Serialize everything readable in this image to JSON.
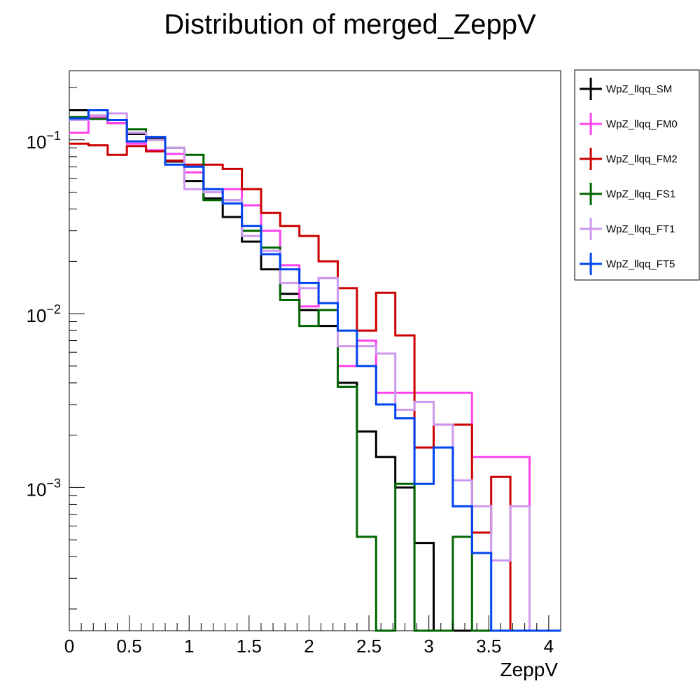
{
  "chart_data": {
    "type": "histogram",
    "title": "Distribution of merged_ZeppV",
    "xlabel": "ZeppV",
    "ylabel": "",
    "xlim": [
      0,
      4.1
    ],
    "ylim": [
      0.00015,
      0.25
    ],
    "yscale": "log",
    "bin_edges": [
      0,
      0.16,
      0.32,
      0.48,
      0.64,
      0.8,
      0.96,
      1.12,
      1.28,
      1.44,
      1.6,
      1.76,
      1.92,
      2.08,
      2.24,
      2.4,
      2.56,
      2.72,
      2.88,
      3.04,
      3.2,
      3.36,
      3.52,
      3.68,
      3.84,
      4.0
    ],
    "x_ticks": [
      "0",
      "0.5",
      "1",
      "1.5",
      "2",
      "2.5",
      "3",
      "3.5",
      "4"
    ],
    "x_tick_values": [
      0,
      0.5,
      1,
      1.5,
      2,
      2.5,
      3,
      3.5,
      4
    ],
    "y_tick_base": "10",
    "y_tick_exponents": [
      "−3",
      "−2",
      "−1"
    ],
    "y_tick_values": [
      0.001,
      0.01,
      0.1
    ],
    "legend_position": "top-right",
    "series": [
      {
        "name": "WpZ_llqq_SM",
        "color": "#000000",
        "values": [
          0.148,
          0.138,
          0.125,
          0.108,
          0.102,
          0.075,
          0.058,
          0.046,
          0.036,
          0.026,
          0.018,
          0.013,
          0.0105,
          0.0085,
          0.004,
          0.0021,
          0.0015,
          0.001,
          0.00048,
          0,
          0,
          0,
          0,
          0,
          0
        ]
      },
      {
        "name": "WpZ_llqq_FM0",
        "color": "#ff44ee",
        "values": [
          0.11,
          0.135,
          0.125,
          0.095,
          0.087,
          0.083,
          0.065,
          0.052,
          0.052,
          0.042,
          0.03,
          0.019,
          0.011,
          0.016,
          0.005,
          0.007,
          0.0035,
          0.0035,
          0.0035,
          0.0035,
          0.0035,
          0.0015,
          0.0015,
          0.0015,
          0
        ]
      },
      {
        "name": "WpZ_llqq_FM2",
        "color": "#cc0000",
        "values": [
          0.095,
          0.093,
          0.082,
          0.092,
          0.086,
          0.076,
          0.072,
          0.072,
          0.068,
          0.052,
          0.038,
          0.032,
          0.028,
          0.02,
          0.014,
          0.008,
          0.0132,
          0.0075,
          0.0017,
          0.0023,
          0.0023,
          0.00055,
          0.00115,
          0,
          0
        ]
      },
      {
        "name": "WpZ_llqq_FS1",
        "color": "#006600",
        "values": [
          0.135,
          0.132,
          0.13,
          0.115,
          0.1,
          0.09,
          0.082,
          0.045,
          0.045,
          0.03,
          0.024,
          0.012,
          0.0085,
          0.0105,
          0.0038,
          0.00052,
          0,
          0.00105,
          0,
          0,
          0.00052,
          0,
          0,
          0,
          0
        ]
      },
      {
        "name": "WpZ_llqq_FT1",
        "color": "#cc99ee",
        "values": [
          0.13,
          0.138,
          0.142,
          0.11,
          0.1,
          0.09,
          0.052,
          0.05,
          0.045,
          0.028,
          0.023,
          0.015,
          0.014,
          0.016,
          0.0065,
          0.0065,
          0.0059,
          0.0028,
          0.0031,
          0.0023,
          0.0011,
          0.00078,
          0.00038,
          0.00078,
          0
        ]
      },
      {
        "name": "WpZ_llqq_FT5",
        "color": "#0044ee",
        "values": [
          0.133,
          0.148,
          0.13,
          0.098,
          0.104,
          0.072,
          0.07,
          0.052,
          0.043,
          0.032,
          0.022,
          0.018,
          0.015,
          0.0115,
          0.008,
          0.005,
          0.003,
          0.0025,
          0.00105,
          0.0017,
          0.00078,
          0.00042,
          0,
          0,
          0
        ]
      }
    ]
  }
}
